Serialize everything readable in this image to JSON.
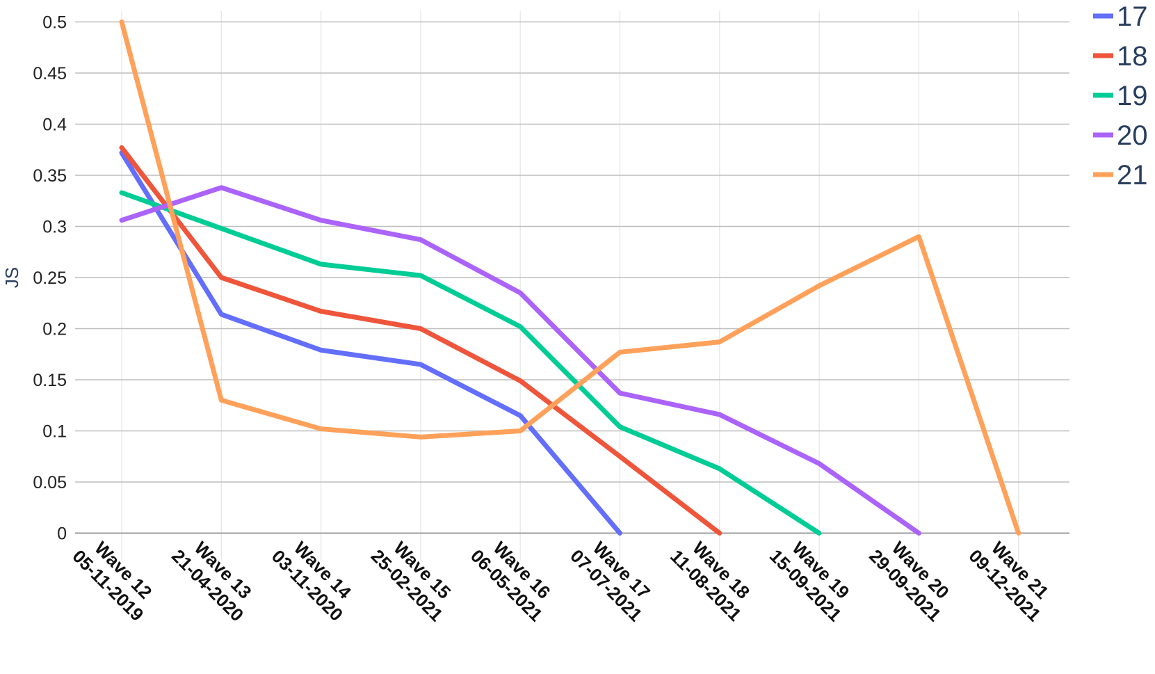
{
  "chart_data": {
    "type": "line",
    "title": "",
    "xlabel": "",
    "ylabel": "JS",
    "ylim": [
      -0.027,
      0.51
    ],
    "yticks": [
      "0",
      "0.05",
      "0.1",
      "0.15",
      "0.2",
      "0.25",
      "0.3",
      "0.35",
      "0.4",
      "0.45",
      "0.5"
    ],
    "grid": true,
    "legend_position": "top-right",
    "categories": [
      [
        "Wave 12",
        "05-11-2019"
      ],
      [
        "Wave 13",
        "21-04-2020"
      ],
      [
        "Wave 14",
        "03-11-2020"
      ],
      [
        "Wave 15",
        "25-02-2021"
      ],
      [
        "Wave 16",
        "06-05-2021"
      ],
      [
        "Wave 17",
        "07-07-2021"
      ],
      [
        "Wave 18",
        "11-08-2021"
      ],
      [
        "Wave 19",
        "15-09-2021"
      ],
      [
        "Wave 20",
        "29-09-2021"
      ],
      [
        "Wave 21",
        "09-12-2021"
      ]
    ],
    "series": [
      {
        "name": "17",
        "color": "#636efa",
        "values": [
          0.372,
          0.214,
          0.179,
          0.165,
          0.115,
          0.0,
          null,
          null,
          null,
          null
        ]
      },
      {
        "name": "18",
        "color": "#ef553b",
        "values": [
          0.377,
          0.25,
          0.217,
          0.2,
          0.149,
          0.075,
          0.0,
          null,
          null,
          null
        ]
      },
      {
        "name": "19",
        "color": "#00cc96",
        "values": [
          0.333,
          0.298,
          0.263,
          0.252,
          0.202,
          0.104,
          0.063,
          0.0,
          null,
          null
        ]
      },
      {
        "name": "20",
        "color": "#ab63fa",
        "values": [
          0.306,
          0.338,
          0.306,
          0.287,
          0.235,
          0.137,
          0.116,
          0.068,
          0.0,
          null
        ]
      },
      {
        "name": "21",
        "color": "#ffa15a",
        "values": [
          0.5,
          0.13,
          0.102,
          0.094,
          0.1,
          0.177,
          0.187,
          0.242,
          0.29,
          0.0
        ]
      }
    ]
  }
}
